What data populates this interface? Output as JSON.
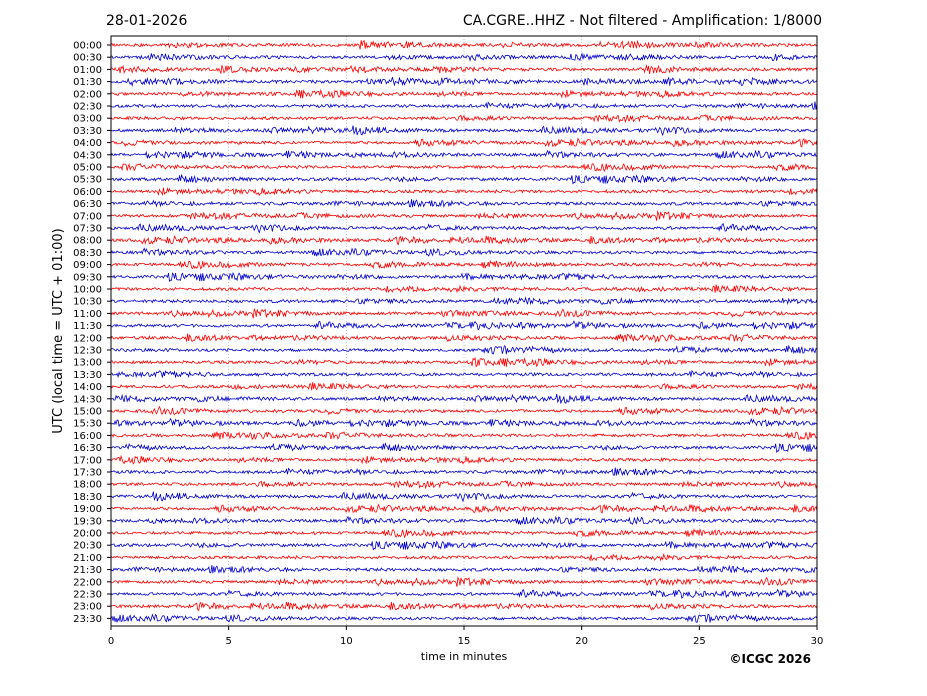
{
  "header": {
    "date": "28-01-2026",
    "station_title": "CA.CGRE..HHZ - Not filtered - Amplification: 1/8000"
  },
  "footer": {
    "credit": "©ICGC 2026"
  },
  "chart_data": {
    "type": "line",
    "title": "CA.CGRE..HHZ - Not filtered - Amplification: 1/8000",
    "xlabel": "time in minutes",
    "ylabel": "UTC (local time = UTC + 01:00)",
    "xlim": [
      0,
      30
    ],
    "x_ticks": [
      0,
      5,
      10,
      15,
      20,
      25,
      30
    ],
    "x_tick_labels": [
      "0",
      "5",
      "10",
      "15",
      "20",
      "25",
      "30"
    ],
    "grid": "vertical dotted at each x tick",
    "trace_colors": [
      "#ff0000",
      "#0000cc"
    ],
    "color_pattern": "alternating red / blue per 30-minute row, starting red at 00:00",
    "row_labels": [
      "00:00",
      "00:30",
      "01:00",
      "01:30",
      "02:00",
      "02:30",
      "03:00",
      "03:30",
      "04:00",
      "04:30",
      "05:00",
      "05:30",
      "06:00",
      "06:30",
      "07:00",
      "07:30",
      "08:00",
      "08:30",
      "09:00",
      "09:30",
      "10:00",
      "10:30",
      "11:00",
      "11:30",
      "12:00",
      "12:30",
      "13:00",
      "13:30",
      "14:00",
      "14:30",
      "15:00",
      "15:30",
      "16:00",
      "16:30",
      "17:00",
      "17:30",
      "18:00",
      "18:30",
      "19:00",
      "19:30",
      "20:00",
      "20:30",
      "21:00",
      "21:30",
      "22:00",
      "22:30",
      "23:00",
      "23:30"
    ]
  }
}
